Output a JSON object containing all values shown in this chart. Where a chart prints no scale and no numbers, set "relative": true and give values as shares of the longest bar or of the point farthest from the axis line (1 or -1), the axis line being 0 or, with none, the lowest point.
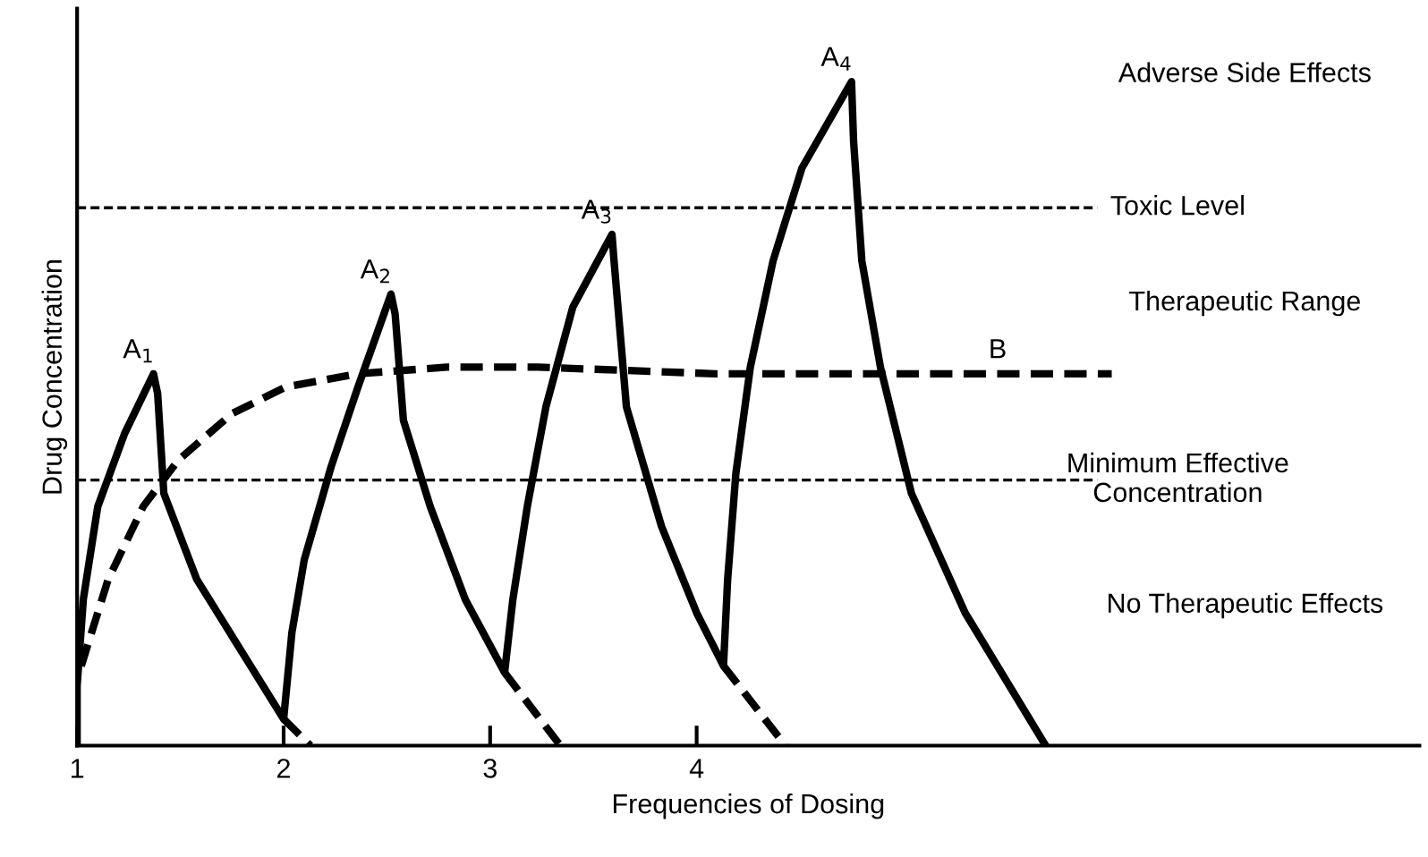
{
  "chart_data": {
    "type": "line",
    "relative": true,
    "xlabel": "Frequencies of Dosing",
    "ylabel": "Drug Concentration",
    "xlim": [
      1,
      7.5
    ],
    "xticks": [
      1,
      2,
      3,
      4
    ],
    "grid": false,
    "legend": false,
    "marker": "none",
    "series": [
      {
        "color": "#000000",
        "line_style": "solid",
        "x": [
          1.0,
          1.0,
          1.03,
          1.1,
          1.23,
          1.37,
          1.39,
          1.42,
          1.58,
          1.84,
          2.0,
          2.04,
          2.1,
          2.23,
          2.36,
          2.52,
          2.54,
          2.58,
          2.71,
          2.88,
          3.07,
          3.11,
          3.18,
          3.27,
          3.4,
          3.59,
          3.6,
          3.66,
          3.83,
          4.0,
          4.13,
          4.15,
          4.19,
          4.26,
          4.37,
          4.51,
          4.75,
          4.76,
          4.8,
          4.89,
          5.04,
          5.3,
          5.69
        ],
        "values": [
          0.0,
          0.09,
          0.22,
          0.36,
          0.47,
          0.56,
          0.53,
          0.38,
          0.25,
          0.12,
          0.04,
          0.17,
          0.28,
          0.42,
          0.54,
          0.68,
          0.65,
          0.49,
          0.36,
          0.22,
          0.11,
          0.22,
          0.36,
          0.51,
          0.66,
          0.77,
          0.73,
          0.51,
          0.33,
          0.2,
          0.12,
          0.25,
          0.41,
          0.57,
          0.73,
          0.87,
          1.0,
          0.91,
          0.73,
          0.57,
          0.38,
          0.2,
          0.0
        ]
      },
      {
        "color": "#000000",
        "line_style": "dashed",
        "x": [
          2.0,
          2.13
        ],
        "values": [
          0.04,
          0.0
        ]
      },
      {
        "color": "#000000",
        "line_style": "dashed",
        "x": [
          3.07,
          3.34
        ],
        "values": [
          0.11,
          0.0
        ]
      },
      {
        "color": "#000000",
        "line_style": "dashed",
        "x": [
          4.13,
          4.43
        ],
        "values": [
          0.12,
          0.0
        ]
      },
      {
        "color": "#000000",
        "line_style": "dashed",
        "x": [
          1.02,
          1.15,
          1.32,
          1.49,
          1.75,
          2.01,
          2.36,
          2.79,
          3.23,
          4.09,
          6.01
        ],
        "values": [
          0.12,
          0.25,
          0.36,
          0.43,
          0.5,
          0.54,
          0.56,
          0.57,
          0.57,
          0.56,
          0.56
        ]
      }
    ],
    "ref_lines": [
      {
        "axis": "y",
        "value": 0.81,
        "label": "Toxic Level",
        "color": "#000000",
        "line_style": "dashed"
      },
      {
        "axis": "y",
        "value": 0.4,
        "label": "Minimum Effective\nConcentration",
        "color": "#000000",
        "line_style": "dashed"
      }
    ],
    "annotations": [
      {
        "text": "A$_{1}$",
        "x": 1.37,
        "y": 0.56
      },
      {
        "text": "A$_{2}$",
        "x": 2.52,
        "y": 0.68
      },
      {
        "text": "A$_{3}$",
        "x": 3.59,
        "y": 0.77
      },
      {
        "text": "A$_{4}$",
        "x": 4.75,
        "y": 1.0
      },
      {
        "text": "B",
        "x": 5.53,
        "y": 0.56
      },
      "Adverse Side Effects",
      "Therapeutic Range",
      "No Therapeutic Effects"
    ]
  }
}
